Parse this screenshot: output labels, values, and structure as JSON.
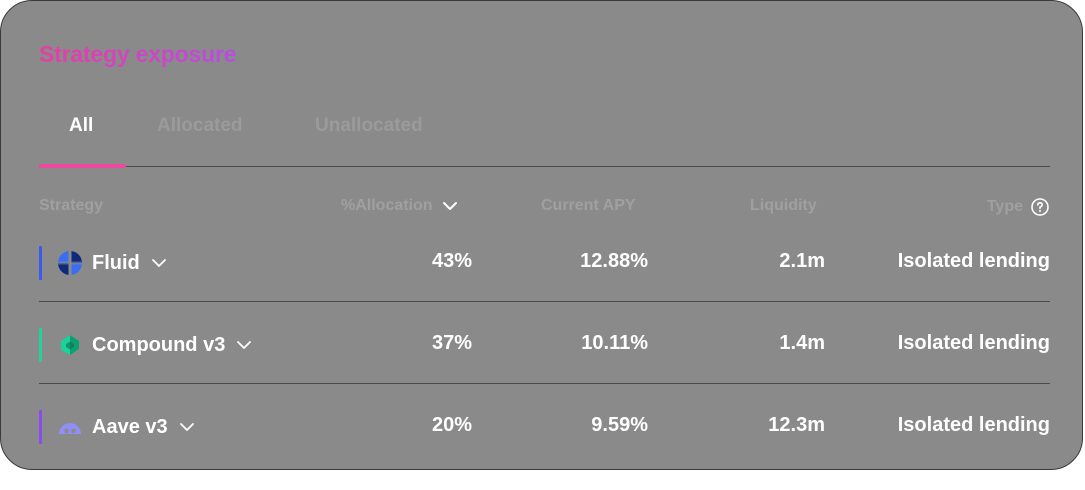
{
  "card": {
    "title": "Strategy exposure",
    "colors": {
      "title_gradient_start": "#e63fa3",
      "title_gradient_end": "#b54fe0",
      "tab_indicator": "#f0479f"
    }
  },
  "tabs": [
    {
      "label": "All",
      "active": true
    },
    {
      "label": "Allocated",
      "active": false
    },
    {
      "label": "Unallocated",
      "active": false
    }
  ],
  "table": {
    "headers": {
      "strategy": "Strategy",
      "allocation": "%Allocation",
      "apy": "Current APY",
      "liquidity": "Liquidity",
      "type": "Type"
    },
    "rows": [
      {
        "name": "Fluid",
        "allocation": "43%",
        "apy": "12.88%",
        "liquidity": "2.1m",
        "type": "Isolated lending",
        "accent": "#3a5bf0",
        "icon": "fluid-logo-icon"
      },
      {
        "name": "Compound v3",
        "allocation": "37%",
        "apy": "10.11%",
        "liquidity": "1.4m",
        "type": "Isolated lending",
        "accent": "#1fd39a",
        "icon": "compound-logo-icon"
      },
      {
        "name": "Aave v3",
        "allocation": "20%",
        "apy": "9.59%",
        "liquidity": "12.3m",
        "type": "Isolated lending",
        "accent": "#8a4bf0",
        "icon": "aave-logo-icon"
      }
    ]
  }
}
